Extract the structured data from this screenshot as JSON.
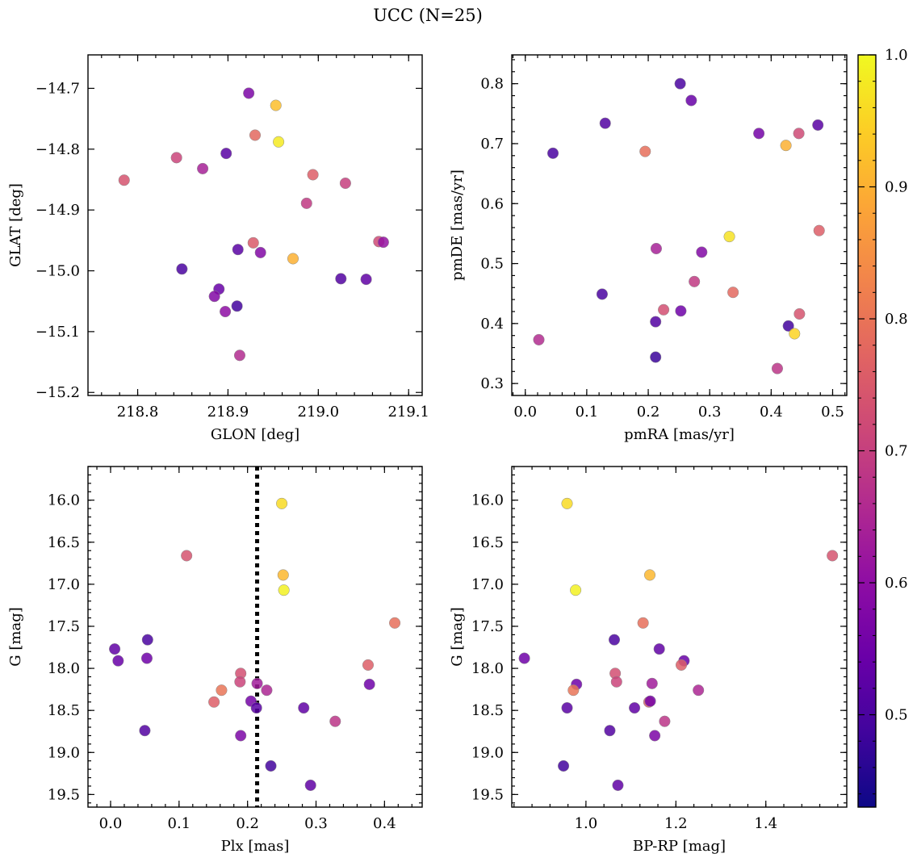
{
  "figure": {
    "title": "UCC (N=25)"
  },
  "colorbar": {
    "range": [
      0.43,
      1.0
    ],
    "ticks": [
      0.5,
      0.6,
      0.7,
      0.8,
      0.9,
      1.0
    ],
    "tick_labels": [
      "0.5",
      "0.6",
      "0.7",
      "0.8",
      "0.9",
      "1.0"
    ],
    "colormap": "plasma"
  },
  "chart_data": [
    {
      "type": "scatter",
      "id": "glon-glat",
      "xlabel": "GLON [deg]",
      "ylabel": "GLAT [deg]",
      "xlim": [
        218.745,
        219.115
      ],
      "ylim": [
        -15.205,
        -14.645
      ],
      "xticks": [
        218.8,
        218.9,
        219.0,
        219.1
      ],
      "xtick_labels": [
        "218.8",
        "218.9",
        "219.0",
        "219.1"
      ],
      "yticks": [
        -14.7,
        -14.8,
        -14.9,
        -15.0,
        -15.1,
        -15.2
      ],
      "ytick_labels": [
        "−14.7",
        "−14.8",
        "−14.9",
        "−15.0",
        "−15.1",
        "−15.2"
      ],
      "points": [
        {
          "x": 218.923,
          "y": -14.708,
          "c": 0.57
        },
        {
          "x": 218.953,
          "y": -14.728,
          "c": 0.92
        },
        {
          "x": 218.93,
          "y": -14.777,
          "c": 0.78
        },
        {
          "x": 218.956,
          "y": -14.788,
          "c": 0.98
        },
        {
          "x": 218.898,
          "y": -14.807,
          "c": 0.52
        },
        {
          "x": 218.843,
          "y": -14.814,
          "c": 0.71
        },
        {
          "x": 218.872,
          "y": -14.832,
          "c": 0.64
        },
        {
          "x": 218.785,
          "y": -14.851,
          "c": 0.74
        },
        {
          "x": 218.994,
          "y": -14.842,
          "c": 0.76
        },
        {
          "x": 219.03,
          "y": -14.856,
          "c": 0.7
        },
        {
          "x": 218.987,
          "y": -14.889,
          "c": 0.69
        },
        {
          "x": 218.928,
          "y": -14.954,
          "c": 0.75
        },
        {
          "x": 219.067,
          "y": -14.952,
          "c": 0.72
        },
        {
          "x": 219.072,
          "y": -14.953,
          "c": 0.61
        },
        {
          "x": 218.911,
          "y": -14.965,
          "c": 0.52
        },
        {
          "x": 218.936,
          "y": -14.97,
          "c": 0.58
        },
        {
          "x": 218.972,
          "y": -14.98,
          "c": 0.9
        },
        {
          "x": 218.849,
          "y": -14.997,
          "c": 0.5
        },
        {
          "x": 219.025,
          "y": -15.013,
          "c": 0.51
        },
        {
          "x": 219.053,
          "y": -15.014,
          "c": 0.53
        },
        {
          "x": 218.89,
          "y": -15.03,
          "c": 0.54
        },
        {
          "x": 218.885,
          "y": -15.042,
          "c": 0.58
        },
        {
          "x": 218.91,
          "y": -15.058,
          "c": 0.49
        },
        {
          "x": 218.897,
          "y": -15.067,
          "c": 0.6
        },
        {
          "x": 218.913,
          "y": -15.139,
          "c": 0.66
        }
      ]
    },
    {
      "type": "scatter",
      "id": "pmra-pmde",
      "xlabel": "pmRA [mas/yr]",
      "ylabel": "pmDE [mas/yr]",
      "xlim": [
        -0.022,
        0.523
      ],
      "ylim": [
        0.28,
        0.848
      ],
      "xticks": [
        0.0,
        0.1,
        0.2,
        0.3,
        0.4,
        0.5
      ],
      "xtick_labels": [
        "0.0",
        "0.1",
        "0.2",
        "0.3",
        "0.4",
        "0.5"
      ],
      "yticks": [
        0.3,
        0.4,
        0.5,
        0.6,
        0.7,
        0.8
      ],
      "ytick_labels": [
        "0.3",
        "0.4",
        "0.5",
        "0.6",
        "0.7",
        "0.8"
      ],
      "points": [
        {
          "x": 0.252,
          "y": 0.8,
          "c": 0.5
        },
        {
          "x": 0.27,
          "y": 0.772,
          "c": 0.54
        },
        {
          "x": 0.13,
          "y": 0.734,
          "c": 0.51
        },
        {
          "x": 0.476,
          "y": 0.731,
          "c": 0.52
        },
        {
          "x": 0.38,
          "y": 0.717,
          "c": 0.56
        },
        {
          "x": 0.445,
          "y": 0.717,
          "c": 0.72
        },
        {
          "x": 0.424,
          "y": 0.697,
          "c": 0.9
        },
        {
          "x": 0.195,
          "y": 0.687,
          "c": 0.79
        },
        {
          "x": 0.045,
          "y": 0.684,
          "c": 0.5
        },
        {
          "x": 0.478,
          "y": 0.555,
          "c": 0.76
        },
        {
          "x": 0.332,
          "y": 0.545,
          "c": 0.97
        },
        {
          "x": 0.213,
          "y": 0.525,
          "c": 0.64
        },
        {
          "x": 0.287,
          "y": 0.519,
          "c": 0.58
        },
        {
          "x": 0.275,
          "y": 0.47,
          "c": 0.69
        },
        {
          "x": 0.338,
          "y": 0.452,
          "c": 0.78
        },
        {
          "x": 0.125,
          "y": 0.449,
          "c": 0.5
        },
        {
          "x": 0.225,
          "y": 0.423,
          "c": 0.73
        },
        {
          "x": 0.253,
          "y": 0.421,
          "c": 0.55
        },
        {
          "x": 0.446,
          "y": 0.416,
          "c": 0.74
        },
        {
          "x": 0.212,
          "y": 0.403,
          "c": 0.51
        },
        {
          "x": 0.428,
          "y": 0.396,
          "c": 0.49
        },
        {
          "x": 0.438,
          "y": 0.383,
          "c": 0.95
        },
        {
          "x": 0.022,
          "y": 0.373,
          "c": 0.66
        },
        {
          "x": 0.212,
          "y": 0.344,
          "c": 0.48
        },
        {
          "x": 0.41,
          "y": 0.325,
          "c": 0.68
        }
      ]
    },
    {
      "type": "scatter",
      "id": "plx-g",
      "xlabel": "Plx [mas]",
      "ylabel": "G [mag]",
      "xlim": [
        -0.033,
        0.455
      ],
      "ylim": [
        19.65,
        15.6
      ],
      "y_inverted": true,
      "xticks": [
        0.0,
        0.1,
        0.2,
        0.3,
        0.4
      ],
      "xtick_labels": [
        "0.0",
        "0.1",
        "0.2",
        "0.3",
        "0.4"
      ],
      "yticks": [
        16.0,
        16.5,
        17.0,
        17.5,
        18.0,
        18.5,
        19.0,
        19.5
      ],
      "ytick_labels": [
        "16.0",
        "16.5",
        "17.0",
        "17.5",
        "18.0",
        "18.5",
        "19.0",
        "19.5"
      ],
      "vline": {
        "x": 0.214,
        "style": "dotted",
        "color": "#000000"
      },
      "points": [
        {
          "x": 0.25,
          "y": 16.04,
          "c": 0.96
        },
        {
          "x": 0.111,
          "y": 16.66,
          "c": 0.74
        },
        {
          "x": 0.252,
          "y": 16.89,
          "c": 0.91
        },
        {
          "x": 0.253,
          "y": 17.07,
          "c": 0.99
        },
        {
          "x": 0.415,
          "y": 17.46,
          "c": 0.79
        },
        {
          "x": 0.054,
          "y": 17.66,
          "c": 0.5
        },
        {
          "x": 0.006,
          "y": 17.77,
          "c": 0.53
        },
        {
          "x": 0.011,
          "y": 17.91,
          "c": 0.54
        },
        {
          "x": 0.053,
          "y": 17.88,
          "c": 0.55
        },
        {
          "x": 0.376,
          "y": 17.96,
          "c": 0.76
        },
        {
          "x": 0.19,
          "y": 18.06,
          "c": 0.73
        },
        {
          "x": 0.189,
          "y": 18.16,
          "c": 0.71
        },
        {
          "x": 0.378,
          "y": 18.19,
          "c": 0.55
        },
        {
          "x": 0.214,
          "y": 18.18,
          "c": 0.63
        },
        {
          "x": 0.162,
          "y": 18.26,
          "c": 0.8
        },
        {
          "x": 0.228,
          "y": 18.26,
          "c": 0.65
        },
        {
          "x": 0.151,
          "y": 18.4,
          "c": 0.76
        },
        {
          "x": 0.205,
          "y": 18.39,
          "c": 0.56
        },
        {
          "x": 0.213,
          "y": 18.47,
          "c": 0.52
        },
        {
          "x": 0.282,
          "y": 18.47,
          "c": 0.53
        },
        {
          "x": 0.328,
          "y": 18.63,
          "c": 0.68
        },
        {
          "x": 0.05,
          "y": 18.74,
          "c": 0.51
        },
        {
          "x": 0.19,
          "y": 18.8,
          "c": 0.57
        },
        {
          "x": 0.234,
          "y": 19.16,
          "c": 0.49
        },
        {
          "x": 0.292,
          "y": 19.39,
          "c": 0.53
        }
      ]
    },
    {
      "type": "scatter",
      "id": "bprp-g",
      "xlabel": "BP-RP [mag]",
      "ylabel": "G [mag]",
      "xlim": [
        0.835,
        1.58
      ],
      "ylim": [
        19.65,
        15.6
      ],
      "y_inverted": true,
      "xticks": [
        1.0,
        1.2,
        1.4
      ],
      "xtick_labels": [
        "1.0",
        "1.2",
        "1.4"
      ],
      "yticks": [
        16.0,
        16.5,
        17.0,
        17.5,
        18.0,
        18.5,
        19.0,
        19.5
      ],
      "ytick_labels": [
        "16.0",
        "16.5",
        "17.0",
        "17.5",
        "18.0",
        "18.5",
        "19.0",
        "19.5"
      ],
      "points": [
        {
          "x": 0.958,
          "y": 16.04,
          "c": 0.96
        },
        {
          "x": 1.548,
          "y": 16.66,
          "c": 0.74
        },
        {
          "x": 1.142,
          "y": 16.89,
          "c": 0.91
        },
        {
          "x": 0.977,
          "y": 17.07,
          "c": 0.99
        },
        {
          "x": 1.127,
          "y": 17.46,
          "c": 0.79
        },
        {
          "x": 1.063,
          "y": 17.66,
          "c": 0.5
        },
        {
          "x": 1.163,
          "y": 17.77,
          "c": 0.53
        },
        {
          "x": 0.863,
          "y": 17.88,
          "c": 0.55
        },
        {
          "x": 1.218,
          "y": 17.91,
          "c": 0.54
        },
        {
          "x": 1.212,
          "y": 17.96,
          "c": 0.76
        },
        {
          "x": 1.065,
          "y": 18.06,
          "c": 0.73
        },
        {
          "x": 1.068,
          "y": 18.16,
          "c": 0.71
        },
        {
          "x": 0.979,
          "y": 18.19,
          "c": 0.55
        },
        {
          "x": 1.147,
          "y": 18.18,
          "c": 0.63
        },
        {
          "x": 0.972,
          "y": 18.26,
          "c": 0.8
        },
        {
          "x": 1.25,
          "y": 18.26,
          "c": 0.65
        },
        {
          "x": 1.14,
          "y": 18.4,
          "c": 0.76
        },
        {
          "x": 1.143,
          "y": 18.39,
          "c": 0.56
        },
        {
          "x": 0.958,
          "y": 18.47,
          "c": 0.52
        },
        {
          "x": 1.108,
          "y": 18.47,
          "c": 0.53
        },
        {
          "x": 1.175,
          "y": 18.63,
          "c": 0.68
        },
        {
          "x": 1.053,
          "y": 18.74,
          "c": 0.51
        },
        {
          "x": 1.153,
          "y": 18.8,
          "c": 0.57
        },
        {
          "x": 0.95,
          "y": 19.16,
          "c": 0.49
        },
        {
          "x": 1.071,
          "y": 19.39,
          "c": 0.53
        }
      ]
    }
  ]
}
